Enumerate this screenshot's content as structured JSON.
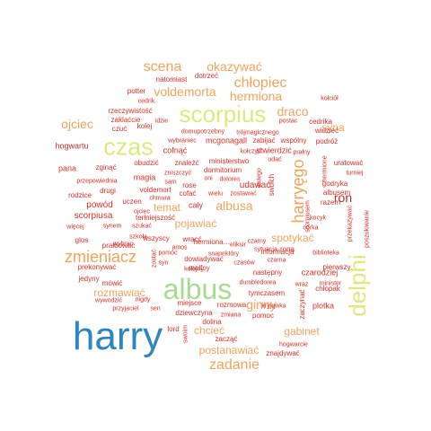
{
  "colors": {
    "blue": "#2e86c1",
    "green": "#a8db8f",
    "yellowgreen": "#d6ec7e",
    "orange": "#f0a35a",
    "red": "#d73027",
    "darkred": "#b5302a"
  },
  "words": [
    {
      "text": "harry",
      "color": "blue"
    },
    {
      "text": "albus",
      "color": "green"
    },
    {
      "text": "scorpius",
      "color": "yellowgreen"
    },
    {
      "text": "czas",
      "color": "yellowgreen"
    },
    {
      "text": "delphi",
      "color": "yellowgreen"
    },
    {
      "text": "harryęgo",
      "color": "orange"
    },
    {
      "text": "zmieniacz",
      "color": "orange"
    },
    {
      "text": "scena",
      "color": "orange"
    },
    {
      "text": "zadanie",
      "color": "orange"
    },
    {
      "text": "chłopiec",
      "color": "orange"
    },
    {
      "text": "voldemorta",
      "color": "orange"
    },
    {
      "text": "okazywać",
      "color": "orange"
    },
    {
      "text": "hermiona",
      "color": "orange"
    },
    {
      "text": "draco",
      "color": "orange"
    },
    {
      "text": "ojciec",
      "color": "orange"
    },
    {
      "text": "ginny",
      "color": "orange"
    },
    {
      "text": "albusa",
      "color": "orange"
    },
    {
      "text": "ron",
      "color": "darkred"
    },
    {
      "text": "syna",
      "color": "orange"
    },
    {
      "text": "pojawiać",
      "color": "orange"
    },
    {
      "text": "postanawiać",
      "color": "orange"
    },
    {
      "text": "chcieć",
      "color": "orange"
    },
    {
      "text": "rozmawiać",
      "color": "orange"
    },
    {
      "text": "spotykać",
      "color": "orange"
    },
    {
      "text": "gabinet",
      "color": "orange"
    },
    {
      "text": "temat",
      "color": "orange"
    },
    {
      "text": "powód",
      "color": "red"
    },
    {
      "text": "scorpiusa",
      "color": "red"
    },
    {
      "text": "cofnąć",
      "color": "red"
    },
    {
      "text": "mcgonagall",
      "color": "red"
    },
    {
      "text": "zabijać",
      "color": "red"
    },
    {
      "text": "natomiast",
      "color": "red"
    },
    {
      "text": "dotrzeć",
      "color": "red"
    },
    {
      "text": "potter",
      "color": "red"
    },
    {
      "text": "kolej",
      "color": "red"
    },
    {
      "text": "zaklaćcie",
      "color": "red"
    },
    {
      "text": "rzeczywistość",
      "color": "red"
    },
    {
      "text": "hogwartu",
      "color": "darkred"
    },
    {
      "text": "pana",
      "color": "red"
    },
    {
      "text": "zginąć",
      "color": "red"
    },
    {
      "text": "obudzić",
      "color": "red"
    },
    {
      "text": "znaleźć",
      "color": "red"
    },
    {
      "text": "udawać",
      "color": "red"
    },
    {
      "text": "magia",
      "color": "red"
    },
    {
      "text": "rose",
      "color": "red"
    },
    {
      "text": "caly",
      "color": "red"
    },
    {
      "text": "czarodziej",
      "color": "red"
    },
    {
      "text": "plotka",
      "color": "red"
    },
    {
      "text": "chłopak",
      "color": "red"
    },
    {
      "text": "cedrika",
      "color": "red"
    },
    {
      "text": "uratować",
      "color": "red"
    },
    {
      "text": "turniej",
      "color": "red"
    },
    {
      "text": "godryka",
      "color": "red"
    },
    {
      "text": "albusem",
      "color": "red"
    },
    {
      "text": "hermiona…",
      "color": "red"
    },
    {
      "text": "przekazywać",
      "color": "red"
    },
    {
      "text": "poszukiwanie",
      "color": "red"
    },
    {
      "text": "scorpiusem",
      "color": "red"
    },
    {
      "text": "swoich",
      "color": "red"
    },
    {
      "text": "swiego",
      "color": "red"
    },
    {
      "text": "hermione",
      "color": "red"
    },
    {
      "text": "zaczynać",
      "color": "red"
    },
    {
      "text": "zostać",
      "color": "red"
    },
    {
      "text": "pomoc",
      "color": "red"
    },
    {
      "text": "zmiana",
      "color": "red"
    },
    {
      "text": "dolina",
      "color": "red"
    },
    {
      "text": "hogwarcie",
      "color": "red"
    },
    {
      "text": "znajdywać",
      "color": "red"
    },
    {
      "text": "zacząć",
      "color": "red"
    },
    {
      "text": "lord",
      "color": "red"
    },
    {
      "text": "swoim",
      "color": "red"
    },
    {
      "text": "malfoy",
      "color": "red"
    },
    {
      "text": "miejsce",
      "color": "red"
    },
    {
      "text": "dziewczyna",
      "color": "red"
    },
    {
      "text": "tymczasem",
      "color": "red"
    },
    {
      "text": "prekonywać",
      "color": "red"
    },
    {
      "text": "mówić",
      "color": "red"
    },
    {
      "text": "wywodzić",
      "color": "red"
    },
    {
      "text": "przyjaciel",
      "color": "red"
    },
    {
      "text": "glos",
      "color": "red"
    },
    {
      "text": "jedyny",
      "color": "red"
    },
    {
      "text": "prałbować",
      "color": "red"
    },
    {
      "text": "nigdy",
      "color": "red"
    },
    {
      "text": "sen",
      "color": "red"
    },
    {
      "text": "wybrac",
      "color": "red"
    },
    {
      "text": "wszyscy",
      "color": "red"
    },
    {
      "text": "wracć",
      "color": "red"
    },
    {
      "text": "dowiadywać",
      "color": "red"
    },
    {
      "text": "kolejny",
      "color": "red"
    },
    {
      "text": "następny",
      "color": "red"
    },
    {
      "text": "dumbledorea",
      "color": "red"
    },
    {
      "text": "rozmowa",
      "color": "red"
    },
    {
      "text": "kryjąwka",
      "color": "red"
    },
    {
      "text": "wraz",
      "color": "red"
    },
    {
      "text": "minister",
      "color": "red"
    },
    {
      "text": "czarna",
      "color": "red"
    },
    {
      "text": "sytuacja",
      "color": "red"
    },
    {
      "text": "rona",
      "color": "red"
    },
    {
      "text": "informacja",
      "color": "red"
    },
    {
      "text": "czasów",
      "color": "red"
    },
    {
      "text": "biblioteka",
      "color": "red"
    },
    {
      "text": "pierwszy",
      "color": "red"
    },
    {
      "text": "kocyk",
      "color": "red"
    },
    {
      "text": "córka",
      "color": "red"
    },
    {
      "text": "razem",
      "color": "red"
    },
    {
      "text": "czarny",
      "color": "red"
    },
    {
      "text": "snapektóry",
      "color": "red"
    },
    {
      "text": "eliksir",
      "color": "red"
    },
    {
      "text": "amos",
      "color": "red"
    },
    {
      "text": "pomóc",
      "color": "red"
    },
    {
      "text": "terłniejszość",
      "color": "red"
    },
    {
      "text": "syn",
      "color": "red"
    },
    {
      "text": "synem",
      "color": "red"
    },
    {
      "text": "szukać",
      "color": "red"
    },
    {
      "text": "więcej",
      "color": "red"
    },
    {
      "text": "szkoła",
      "color": "red"
    },
    {
      "text": "uczen",
      "color": "red"
    },
    {
      "text": "ojciec",
      "color": "red"
    },
    {
      "text": "chmura",
      "color": "red"
    },
    {
      "text": "cofać",
      "color": "red"
    },
    {
      "text": "wielu",
      "color": "red"
    },
    {
      "text": "zostawać",
      "color": "red"
    },
    {
      "text": "voldemort",
      "color": "red"
    },
    {
      "text": "sam",
      "color": "red"
    },
    {
      "text": "drugi",
      "color": "red"
    },
    {
      "text": "rodzice",
      "color": "red"
    },
    {
      "text": "przepowiednia",
      "color": "red"
    },
    {
      "text": "zniszczyć",
      "color": "red"
    },
    {
      "text": "dormitorium",
      "color": "red"
    },
    {
      "text": "oni",
      "color": "red"
    },
    {
      "text": "dolores",
      "color": "red"
    },
    {
      "text": "ministerstwo",
      "color": "red"
    },
    {
      "text": "udać",
      "color": "red"
    },
    {
      "text": "stwierdzić",
      "color": "red"
    },
    {
      "text": "kołczyć",
      "color": "red"
    },
    {
      "text": "wspólny",
      "color": "red"
    },
    {
      "text": "podróż",
      "color": "red"
    },
    {
      "text": "prałny",
      "color": "red"
    },
    {
      "text": "trójmagicznego",
      "color": "red"
    },
    {
      "text": "domupotrzebny",
      "color": "red"
    },
    {
      "text": "wybraniec",
      "color": "red"
    },
    {
      "text": "czuć",
      "color": "red"
    },
    {
      "text": "idzie",
      "color": "red"
    },
    {
      "text": "cedrik",
      "color": "red"
    },
    {
      "text": "kołciół",
      "color": "red"
    },
    {
      "text": "postac",
      "color": "red"
    },
    {
      "text": "widzieć",
      "color": "red"
    }
  ]
}
